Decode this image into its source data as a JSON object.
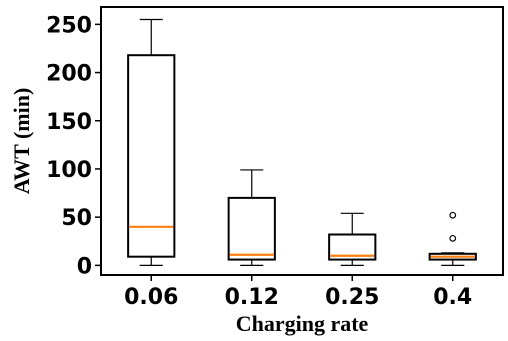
{
  "chart_data": {
    "type": "box",
    "xlabel": "Charging rate",
    "ylabel": "AWT (min)",
    "categories": [
      "0.06",
      "0.12",
      "0.25",
      "0.4"
    ],
    "ylim": [
      -10,
      268
    ],
    "yticks": [
      0,
      50,
      100,
      150,
      200,
      250
    ],
    "median_color": "#ff7f0e",
    "boxes": [
      {
        "category": "0.06",
        "whisker_low": 0,
        "q1": 9,
        "median": 40,
        "q3": 218,
        "whisker_high": 255,
        "fliers": []
      },
      {
        "category": "0.12",
        "whisker_low": 0,
        "q1": 6,
        "median": 11,
        "q3": 70,
        "whisker_high": 99,
        "fliers": []
      },
      {
        "category": "0.25",
        "whisker_low": 0,
        "q1": 6,
        "median": 10,
        "q3": 32,
        "whisker_high": 54,
        "fliers": []
      },
      {
        "category": "0.4",
        "whisker_low": 0,
        "q1": 6,
        "median": 9,
        "q3": 12,
        "whisker_high": 13,
        "fliers": [
          28,
          52
        ]
      }
    ]
  }
}
